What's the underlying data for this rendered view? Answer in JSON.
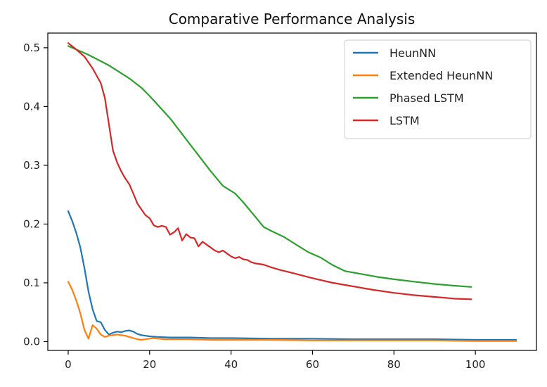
{
  "chart_data": {
    "type": "line",
    "title": "Comparative Performance Analysis",
    "xlabel": "",
    "ylabel": "",
    "xlim": [
      -5,
      115
    ],
    "ylim": [
      -0.015,
      0.525
    ],
    "xticks": [
      0,
      20,
      40,
      60,
      80,
      100
    ],
    "yticks": [
      0.0,
      0.1,
      0.2,
      0.3,
      0.4,
      0.5
    ],
    "xtick_labels": [
      "0",
      "20",
      "40",
      "60",
      "80",
      "100"
    ],
    "ytick_labels": [
      "0.0",
      "0.1",
      "0.2",
      "0.3",
      "0.4",
      "0.5"
    ],
    "grid": false,
    "legend_position": "upper-right",
    "series": [
      {
        "name": "HeunNN",
        "color": "#1f77b4",
        "x": [
          0,
          1,
          2,
          3,
          4,
          5,
          6,
          7,
          8,
          9,
          10,
          11,
          12,
          13,
          14,
          15,
          16,
          17,
          18,
          20,
          22,
          25,
          30,
          35,
          40,
          50,
          60,
          70,
          80,
          90,
          100,
          110
        ],
        "y": [
          0.222,
          0.205,
          0.185,
          0.16,
          0.125,
          0.085,
          0.055,
          0.035,
          0.033,
          0.02,
          0.012,
          0.015,
          0.017,
          0.016,
          0.018,
          0.019,
          0.017,
          0.013,
          0.011,
          0.009,
          0.008,
          0.007,
          0.007,
          0.006,
          0.006,
          0.005,
          0.005,
          0.004,
          0.004,
          0.004,
          0.003,
          0.003
        ]
      },
      {
        "name": "Extended HeunNN",
        "color": "#ff7f0e",
        "x": [
          0,
          1,
          2,
          3,
          4,
          5,
          6,
          7,
          8,
          9,
          10,
          11,
          12,
          13,
          14,
          15,
          16,
          17,
          18,
          19,
          20,
          21,
          22,
          24,
          26,
          30,
          35,
          40,
          50,
          60,
          70,
          80,
          90,
          100,
          110
        ],
        "y": [
          0.102,
          0.088,
          0.07,
          0.048,
          0.02,
          0.005,
          0.028,
          0.022,
          0.012,
          0.008,
          0.01,
          0.011,
          0.012,
          0.011,
          0.01,
          0.008,
          0.006,
          0.004,
          0.003,
          0.004,
          0.005,
          0.006,
          0.005,
          0.004,
          0.004,
          0.004,
          0.003,
          0.003,
          0.003,
          0.002,
          0.002,
          0.002,
          0.002,
          0.001,
          0.001
        ]
      },
      {
        "name": "Phased LSTM",
        "color": "#2ca02c",
        "x": [
          0,
          5,
          10,
          15,
          18,
          20,
          25,
          30,
          35,
          38,
          41,
          43,
          46,
          48,
          50,
          53,
          56,
          59,
          62,
          65,
          68,
          72,
          76,
          80,
          85,
          90,
          95,
          99
        ],
        "y": [
          0.503,
          0.488,
          0.47,
          0.448,
          0.432,
          0.418,
          0.38,
          0.335,
          0.29,
          0.265,
          0.252,
          0.237,
          0.212,
          0.195,
          0.188,
          0.178,
          0.165,
          0.152,
          0.143,
          0.13,
          0.12,
          0.115,
          0.11,
          0.106,
          0.102,
          0.098,
          0.095,
          0.093
        ]
      },
      {
        "name": "LSTM",
        "color": "#d62728",
        "x": [
          0,
          2,
          4,
          6,
          8,
          9,
          10,
          11,
          12,
          13,
          14,
          15,
          16,
          17,
          18,
          19,
          20,
          21,
          22,
          23,
          24,
          25,
          26,
          27,
          28,
          29,
          30,
          31,
          32,
          33,
          34,
          35,
          36,
          37,
          38,
          39,
          40,
          41,
          42,
          43,
          44,
          45,
          46,
          48,
          50,
          52,
          55,
          60,
          65,
          70,
          75,
          80,
          85,
          90,
          95,
          99
        ],
        "y": [
          0.508,
          0.497,
          0.485,
          0.465,
          0.44,
          0.415,
          0.37,
          0.325,
          0.305,
          0.29,
          0.278,
          0.268,
          0.252,
          0.235,
          0.225,
          0.215,
          0.21,
          0.198,
          0.195,
          0.197,
          0.195,
          0.182,
          0.186,
          0.193,
          0.172,
          0.183,
          0.177,
          0.176,
          0.162,
          0.17,
          0.165,
          0.16,
          0.155,
          0.152,
          0.155,
          0.15,
          0.145,
          0.142,
          0.144,
          0.14,
          0.139,
          0.135,
          0.133,
          0.131,
          0.126,
          0.122,
          0.117,
          0.108,
          0.1,
          0.094,
          0.088,
          0.083,
          0.079,
          0.076,
          0.073,
          0.072
        ]
      }
    ]
  }
}
